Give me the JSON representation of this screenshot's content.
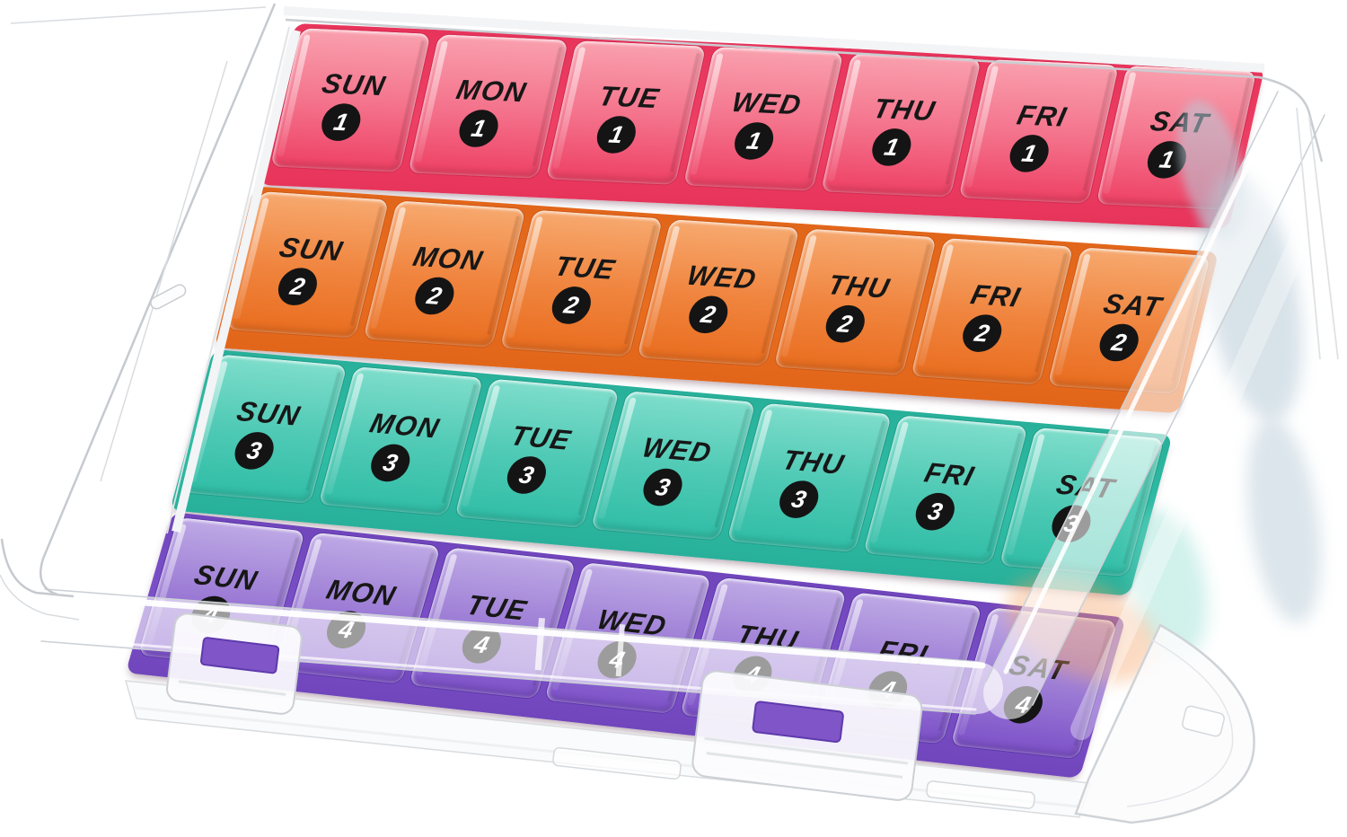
{
  "background": "#ffffff",
  "organizer": {
    "days": [
      "SUN",
      "MON",
      "TUE",
      "WED",
      "THU",
      "FRI",
      "SAT"
    ],
    "weeks": [
      {
        "number": "1",
        "color_name": "pink",
        "lid_top": "#f9a0ae",
        "lid_mid": "#f4738c",
        "lid_bottom": "#ee4064",
        "base": "#e7345b",
        "edge": "#d52b52"
      },
      {
        "number": "2",
        "color_name": "orange",
        "lid_top": "#f7a96f",
        "lid_mid": "#f0853f",
        "lid_bottom": "#e96d1f",
        "base": "#e2661a",
        "edge": "#ce5a16"
      },
      {
        "number": "3",
        "color_name": "teal",
        "lid_top": "#7eddcb",
        "lid_mid": "#4fcab5",
        "lid_bottom": "#30bda6",
        "base": "#28b09a",
        "edge": "#1f9f8b"
      },
      {
        "number": "4",
        "color_name": "purple",
        "lid_top": "#bea9e5",
        "lid_mid": "#9c7cd5",
        "lid_bottom": "#7c50c8",
        "base": "#7146bc",
        "edge": "#5e39ac"
      }
    ],
    "badge": {
      "background": "#141414",
      "text": "#ffffff"
    },
    "label_color": "#171717"
  },
  "materials": {
    "clear_plastic_stroke": "#c9cdd1",
    "clear_plastic_fill": "rgba(255,255,255,0.58)",
    "latch_slot_color": "#8055c8"
  }
}
